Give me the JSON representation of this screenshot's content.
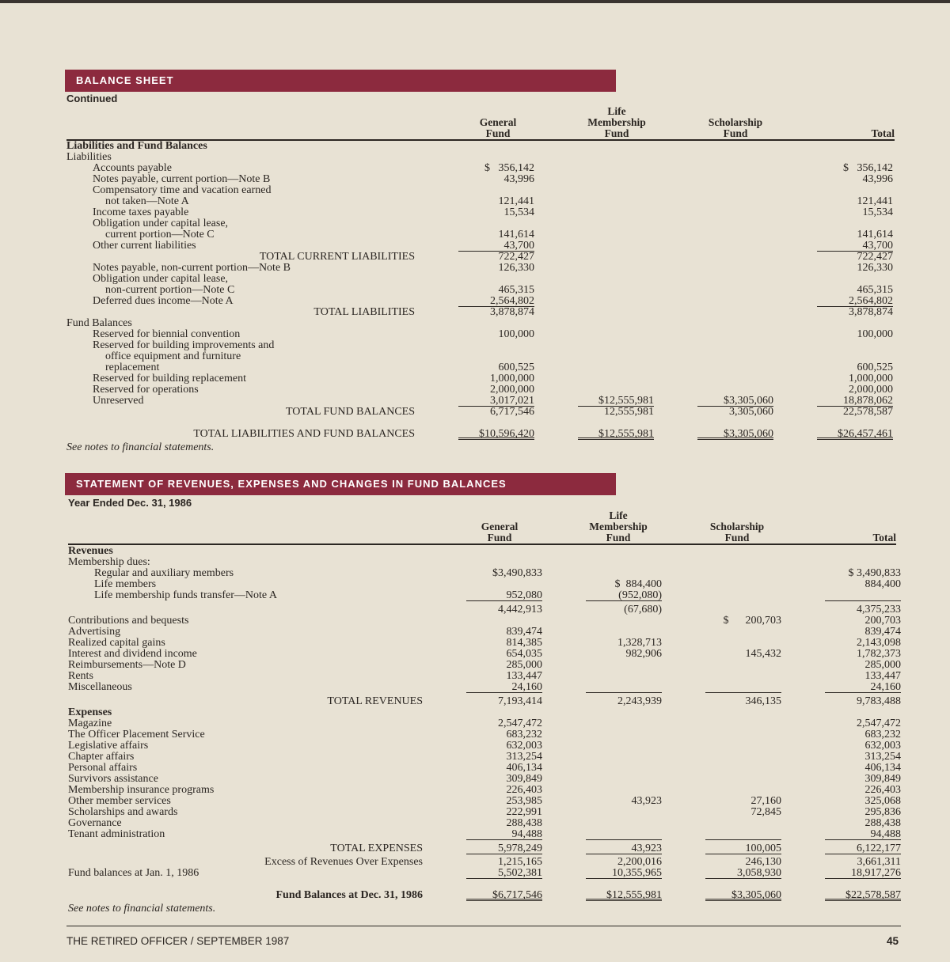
{
  "columns": [
    "General\nFund",
    "Life\nMembership\nFund",
    "Scholarship\nFund",
    "Total"
  ],
  "balance_sheet": {
    "title": "BALANCE SHEET",
    "subtitle": "Continued",
    "rows": [
      {
        "label": "Liabilities and Fund Balances",
        "kind": "bold",
        "indent": 0
      },
      {
        "label": "Liabilities",
        "indent": 0
      },
      {
        "label": "Accounts payable",
        "indent": 1,
        "values": [
          "$   356,142",
          "",
          "",
          "$   356,142"
        ]
      },
      {
        "label": "Notes payable, current portion—Note B",
        "indent": 1,
        "values": [
          "43,996",
          "",
          "",
          "43,996"
        ]
      },
      {
        "label": "Compensatory time and vacation earned",
        "indent": 1
      },
      {
        "label": "not taken—Note A",
        "indent": 2,
        "values": [
          "121,441",
          "",
          "",
          "121,441"
        ]
      },
      {
        "label": "Income taxes payable",
        "indent": 1,
        "values": [
          "15,534",
          "",
          "",
          "15,534"
        ]
      },
      {
        "label": "Obligation under capital lease,",
        "indent": 1
      },
      {
        "label": "current portion—Note C",
        "indent": 2,
        "values": [
          "141,614",
          "",
          "",
          "141,614"
        ]
      },
      {
        "label": "Other current liabilities",
        "indent": 1,
        "values": [
          "43,700",
          "",
          "",
          "43,700"
        ],
        "underline": [
          true,
          false,
          false,
          true
        ]
      },
      {
        "label": "TOTAL CURRENT LIABILITIES",
        "kind": "total",
        "values": [
          "722,427",
          "",
          "",
          "722,427"
        ]
      },
      {
        "label": "Notes payable, non-current portion—Note B",
        "indent": 1,
        "values": [
          "126,330",
          "",
          "",
          "126,330"
        ]
      },
      {
        "label": "Obligation under capital lease,",
        "indent": 1
      },
      {
        "label": "non-current portion—Note C",
        "indent": 2,
        "values": [
          "465,315",
          "",
          "",
          "465,315"
        ]
      },
      {
        "label": "Deferred dues income—Note A",
        "indent": 1,
        "values": [
          "2,564,802",
          "",
          "",
          "2,564,802"
        ],
        "underline": [
          true,
          false,
          false,
          true
        ]
      },
      {
        "label": "TOTAL LIABILITIES",
        "kind": "total",
        "values": [
          "3,878,874",
          "",
          "",
          "3,878,874"
        ]
      },
      {
        "label": "Fund Balances",
        "indent": 0
      },
      {
        "label": "Reserved for biennial convention",
        "indent": 1,
        "values": [
          "100,000",
          "",
          "",
          "100,000"
        ]
      },
      {
        "label": "Reserved for building improvements and",
        "indent": 1
      },
      {
        "label": "office equipment and furniture",
        "indent": 2
      },
      {
        "label": "replacement",
        "indent": 2,
        "values": [
          "600,525",
          "",
          "",
          "600,525"
        ]
      },
      {
        "label": "Reserved for building replacement",
        "indent": 1,
        "values": [
          "1,000,000",
          "",
          "",
          "1,000,000"
        ]
      },
      {
        "label": "Reserved for operations",
        "indent": 1,
        "values": [
          "2,000,000",
          "",
          "",
          "2,000,000"
        ]
      },
      {
        "label": "Unreserved",
        "indent": 1,
        "values": [
          "3,017,021",
          "$12,555,981",
          "$3,305,060",
          "18,878,062"
        ],
        "underline": [
          true,
          true,
          true,
          true
        ]
      },
      {
        "label": "TOTAL FUND BALANCES",
        "kind": "total",
        "values": [
          "6,717,546",
          "12,555,981",
          "3,305,060",
          "22,578,587"
        ]
      },
      {
        "label": "TOTAL LIABILITIES AND FUND BALANCES",
        "kind": "grand-plain",
        "values": [
          "$10,596,420",
          "$12,555,981",
          "$3,305,060",
          "$26,457,461"
        ],
        "double": true
      },
      {
        "label": "See notes to financial statements.",
        "kind": "note"
      }
    ]
  },
  "statement": {
    "title": "STATEMENT OF REVENUES, EXPENSES AND CHANGES IN FUND BALANCES",
    "subtitle": "Year Ended Dec. 31, 1986",
    "rows": [
      {
        "label": "Revenues",
        "kind": "bold",
        "indent": 0
      },
      {
        "label": "Membership dues:",
        "indent": 0
      },
      {
        "label": "Regular and auxiliary members",
        "indent": 1,
        "values": [
          "$3,490,833",
          "",
          "",
          "$ 3,490,833"
        ]
      },
      {
        "label": "Life members",
        "indent": 1,
        "values": [
          "",
          "$  884,400",
          "",
          "884,400"
        ]
      },
      {
        "label": "Life membership funds transfer—Note A",
        "indent": 1,
        "values": [
          "952,080",
          "(952,080)",
          "",
          ""
        ],
        "underline": [
          true,
          true,
          false,
          true
        ]
      },
      {
        "label": "",
        "kind": "subtotal",
        "values": [
          "4,442,913",
          "(67,680)",
          "",
          "4,375,233"
        ]
      },
      {
        "label": "Contributions and bequests",
        "indent": 0,
        "values": [
          "",
          "",
          "$      200,703",
          "200,703"
        ]
      },
      {
        "label": "Advertising",
        "indent": 0,
        "values": [
          "839,474",
          "",
          "",
          "839,474"
        ]
      },
      {
        "label": "Realized capital gains",
        "indent": 0,
        "values": [
          "814,385",
          "1,328,713",
          "",
          "2,143,098"
        ]
      },
      {
        "label": "Interest and dividend income",
        "indent": 0,
        "values": [
          "654,035",
          "982,906",
          "145,432",
          "1,782,373"
        ]
      },
      {
        "label": "Reimbursements—Note D",
        "indent": 0,
        "values": [
          "285,000",
          "",
          "",
          "285,000"
        ]
      },
      {
        "label": "Rents",
        "indent": 0,
        "values": [
          "133,447",
          "",
          "",
          "133,447"
        ]
      },
      {
        "label": "Miscellaneous",
        "indent": 0,
        "values": [
          "24,160",
          "",
          "",
          "24,160"
        ],
        "underline": [
          true,
          true,
          true,
          true
        ]
      },
      {
        "label": "TOTAL REVENUES",
        "kind": "total",
        "values": [
          "7,193,414",
          "2,243,939",
          "346,135",
          "9,783,488"
        ]
      },
      {
        "label": "Expenses",
        "kind": "bold",
        "indent": 0
      },
      {
        "label": "Magazine",
        "indent": 0,
        "values": [
          "2,547,472",
          "",
          "",
          "2,547,472"
        ]
      },
      {
        "label": "The Officer Placement Service",
        "indent": 0,
        "values": [
          "683,232",
          "",
          "",
          "683,232"
        ]
      },
      {
        "label": "Legislative affairs",
        "indent": 0,
        "values": [
          "632,003",
          "",
          "",
          "632,003"
        ]
      },
      {
        "label": "Chapter affairs",
        "indent": 0,
        "values": [
          "313,254",
          "",
          "",
          "313,254"
        ]
      },
      {
        "label": "Personal affairs",
        "indent": 0,
        "values": [
          "406,134",
          "",
          "",
          "406,134"
        ]
      },
      {
        "label": "Survivors assistance",
        "indent": 0,
        "values": [
          "309,849",
          "",
          "",
          "309,849"
        ]
      },
      {
        "label": "Membership insurance programs",
        "indent": 0,
        "values": [
          "226,403",
          "",
          "",
          "226,403"
        ]
      },
      {
        "label": "Other member services",
        "indent": 0,
        "values": [
          "253,985",
          "43,923",
          "27,160",
          "325,068"
        ]
      },
      {
        "label": "Scholarships and awards",
        "indent": 0,
        "values": [
          "222,991",
          "",
          "72,845",
          "295,836"
        ]
      },
      {
        "label": "Governance",
        "indent": 0,
        "values": [
          "288,438",
          "",
          "",
          "288,438"
        ]
      },
      {
        "label": "Tenant administration",
        "indent": 0,
        "values": [
          "94,488",
          "",
          "",
          "94,488"
        ],
        "underline": [
          true,
          true,
          true,
          true
        ]
      },
      {
        "label": "TOTAL EXPENSES",
        "kind": "total",
        "values": [
          "5,978,249",
          "43,923",
          "100,005",
          "6,122,177"
        ],
        "underline": [
          true,
          true,
          true,
          true
        ]
      },
      {
        "label": "Excess of Revenues Over Expenses",
        "kind": "excess",
        "values": [
          "1,215,165",
          "2,200,016",
          "246,130",
          "3,661,311"
        ]
      },
      {
        "label": "Fund balances at Jan. 1, 1986",
        "indent": 0,
        "values": [
          "5,502,381",
          "10,355,965",
          "3,058,930",
          "18,917,276"
        ],
        "underline": [
          true,
          true,
          true,
          true
        ]
      },
      {
        "label": "Fund Balances at Dec. 31, 1986",
        "kind": "grand",
        "values": [
          "$6,717,546",
          "$12,555,981",
          "$3,305,060",
          "$22,578,587"
        ],
        "double": true
      },
      {
        "label": "See notes to financial statements.",
        "kind": "note"
      }
    ]
  },
  "footer": {
    "publication": "THE RETIRED OFFICER / SEPTEMBER 1987",
    "page_number": "45"
  },
  "colors": {
    "section_bar": "#8c2a3e",
    "paper": "#e8e2d4",
    "ink": "#2b2622"
  }
}
